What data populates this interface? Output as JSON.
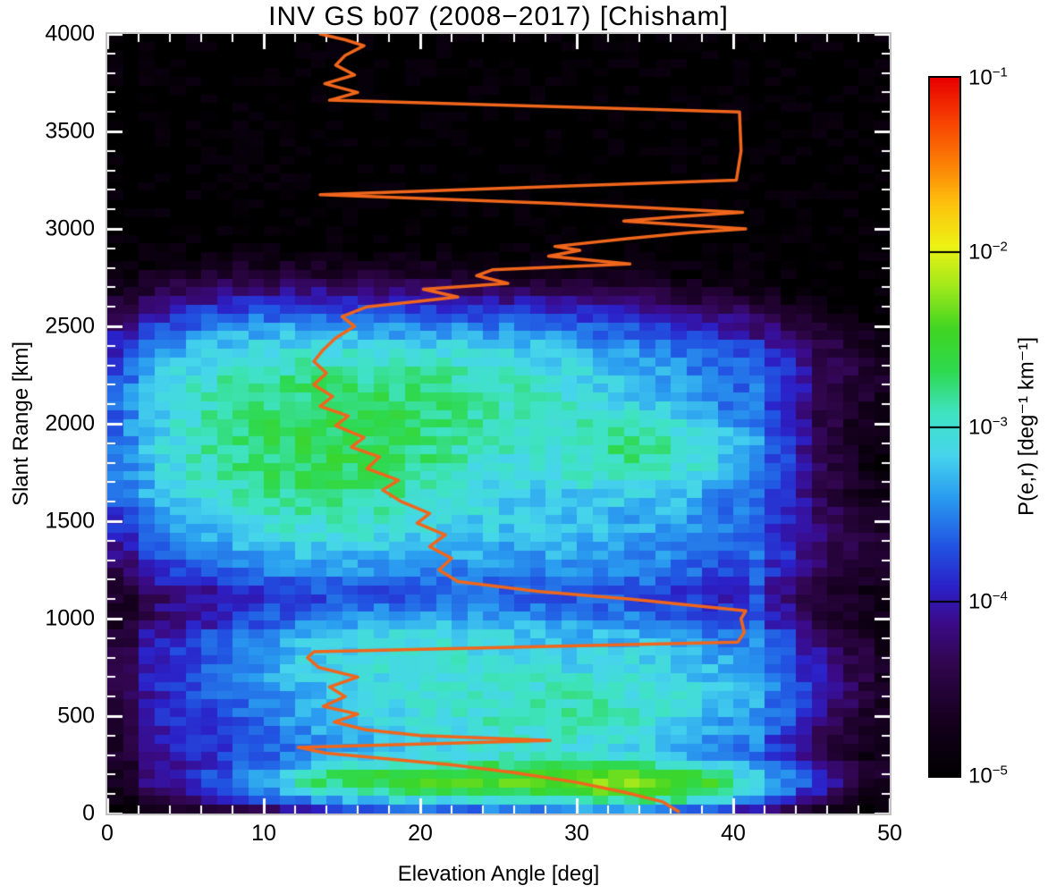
{
  "title": "INV GS b07 (2008−2017) [Chisham]",
  "x_axis": {
    "label": "Elevation Angle [deg]",
    "ticks": [
      0,
      10,
      20,
      30,
      40,
      50
    ],
    "minor_step": 2,
    "range": [
      0,
      50
    ]
  },
  "y_axis": {
    "label": "Slant Range [km]",
    "ticks": [
      0,
      500,
      1000,
      1500,
      2000,
      2500,
      3000,
      3500,
      4000
    ],
    "minor_step": 100,
    "range": [
      0,
      4000
    ]
  },
  "colorbar": {
    "label": "P(e,r) [deg⁻¹ km⁻¹]",
    "tick_exponents": [
      -1,
      -2,
      -3,
      -4,
      -5
    ],
    "scale": "log"
  },
  "chart_data": {
    "type": "heatmap",
    "title": "INV GS b07 (2008−2017) [Chisham]",
    "xlabel": "Elevation Angle [deg]",
    "ylabel": "Slant Range [km]",
    "zlabel": "P(e,r) [deg⁻¹ km⁻¹]",
    "xlim": [
      0,
      50
    ],
    "ylim": [
      0,
      4000
    ],
    "zscale": "log",
    "zlim": [
      1e-05,
      0.1
    ],
    "colormap_stops": [
      [
        0.0,
        "#000000"
      ],
      [
        0.08,
        "#16001f"
      ],
      [
        0.16,
        "#31064e"
      ],
      [
        0.22,
        "#3a0b8a"
      ],
      [
        0.27,
        "#2b21c8"
      ],
      [
        0.33,
        "#2155e2"
      ],
      [
        0.4,
        "#2a9df0"
      ],
      [
        0.46,
        "#46d5ec"
      ],
      [
        0.52,
        "#3fe3c2"
      ],
      [
        0.58,
        "#2ed94f"
      ],
      [
        0.64,
        "#3fd522"
      ],
      [
        0.7,
        "#9fe81b"
      ],
      [
        0.76,
        "#eef214"
      ],
      [
        0.82,
        "#fdc20e"
      ],
      [
        0.88,
        "#fb7d05"
      ],
      [
        0.94,
        "#f74002"
      ],
      [
        1.0,
        "#e80000"
      ]
    ],
    "heatmap_model": {
      "floor_log": -5,
      "noise_log": 0.16,
      "elev_bin_deg": 1,
      "range_bin_km": 45,
      "feather": {
        "e": 1.2,
        "r": 60
      },
      "regions": [
        {
          "e": [
            1.5,
            45
          ],
          "r": [
            110,
            980
          ],
          "v": -4.35
        },
        {
          "e": [
            1.5,
            45
          ],
          "r": [
            1130,
            2460
          ],
          "v": -4.35
        },
        {
          "e": [
            2,
            45
          ],
          "r": [
            980,
            1130
          ],
          "v": -4.55
        },
        {
          "e": [
            1.5,
            44
          ],
          "r": [
            2460,
            2610
          ],
          "v": -4.75
        },
        {
          "e": [
            40.3,
            42.2
          ],
          "r": [
            140,
            2450
          ],
          "v": -3.8
        },
        {
          "e": [
            12,
            40
          ],
          "r": [
            95,
            260
          ],
          "v": -3.15
        }
      ],
      "blobs": [
        {
          "e": 21,
          "r": 560,
          "se": 8,
          "sr": 230,
          "v": -3.2
        },
        {
          "e": 30,
          "r": 480,
          "se": 6,
          "sr": 180,
          "v": -3.15
        },
        {
          "e": 17,
          "r": 820,
          "se": 6,
          "sr": 130,
          "v": -3.4
        },
        {
          "e": 27,
          "r": 180,
          "se": 7,
          "sr": 70,
          "v": -2.8
        },
        {
          "e": 34,
          "r": 140,
          "se": 4,
          "sr": 55,
          "v": -2.5
        },
        {
          "e": 20,
          "r": 150,
          "se": 6,
          "sr": 60,
          "v": -2.95
        },
        {
          "e": 13,
          "r": 1850,
          "se": 6,
          "sr": 280,
          "v": -2.85
        },
        {
          "e": 20,
          "r": 2060,
          "se": 7,
          "sr": 220,
          "v": -3.0
        },
        {
          "e": 17,
          "r": 1620,
          "se": 8,
          "sr": 200,
          "v": -3.35
        },
        {
          "e": 34,
          "r": 1860,
          "se": 4,
          "sr": 140,
          "v": -2.9
        },
        {
          "e": 28,
          "r": 2250,
          "se": 8,
          "sr": 180,
          "v": -3.35
        },
        {
          "e": 10,
          "r": 2250,
          "se": 5,
          "sr": 180,
          "v": -3.3
        },
        {
          "e": 25,
          "r": 1350,
          "se": 10,
          "sr": 160,
          "v": -3.75
        },
        {
          "e": 33,
          "r": 1500,
          "se": 6,
          "sr": 220,
          "v": -3.6
        },
        {
          "e": 6,
          "r": 1950,
          "se": 3,
          "sr": 300,
          "v": -3.65
        },
        {
          "e": 36,
          "r": 700,
          "se": 5,
          "sr": 180,
          "v": -3.4
        },
        {
          "e": 25,
          "r": 920,
          "se": 8,
          "sr": 110,
          "v": -3.6
        }
      ]
    },
    "overlay_line": {
      "name": "mean-elevation-profile",
      "color": "#f0661c",
      "width": 3.5,
      "points": [
        [
          36.5,
          10
        ],
        [
          35.5,
          60
        ],
        [
          33,
          110
        ],
        [
          30,
          160
        ],
        [
          26,
          210
        ],
        [
          22,
          250
        ],
        [
          18,
          280
        ],
        [
          14,
          310
        ],
        [
          12.2,
          340
        ],
        [
          28.3,
          375
        ],
        [
          20,
          400
        ],
        [
          16.5,
          430
        ],
        [
          14.5,
          470
        ],
        [
          16,
          510
        ],
        [
          13.8,
          550
        ],
        [
          15.2,
          600
        ],
        [
          14.2,
          650
        ],
        [
          16,
          700
        ],
        [
          13.5,
          750
        ],
        [
          12.8,
          800
        ],
        [
          13.2,
          830
        ],
        [
          40.3,
          880
        ],
        [
          40.7,
          930
        ],
        [
          40.5,
          1000
        ],
        [
          40.8,
          1040
        ],
        [
          33.5,
          1100
        ],
        [
          27.5,
          1140
        ],
        [
          22.4,
          1190
        ],
        [
          21.2,
          1250
        ],
        [
          22,
          1310
        ],
        [
          20.6,
          1370
        ],
        [
          21.6,
          1430
        ],
        [
          19.8,
          1490
        ],
        [
          20.6,
          1540
        ],
        [
          18.8,
          1600
        ],
        [
          17.6,
          1660
        ],
        [
          18.6,
          1710
        ],
        [
          16.6,
          1770
        ],
        [
          17.4,
          1830
        ],
        [
          15.6,
          1880
        ],
        [
          16.4,
          1930
        ],
        [
          14.6,
          1990
        ],
        [
          15.4,
          2040
        ],
        [
          13.6,
          2090
        ],
        [
          14.4,
          2140
        ],
        [
          13.2,
          2200
        ],
        [
          14,
          2260
        ],
        [
          13.2,
          2320
        ],
        [
          13.8,
          2380
        ],
        [
          14.6,
          2440
        ],
        [
          15.8,
          2500
        ],
        [
          15,
          2550
        ],
        [
          16.6,
          2600
        ],
        [
          22.4,
          2650
        ],
        [
          20.2,
          2690
        ],
        [
          25.6,
          2720
        ],
        [
          23.6,
          2760
        ],
        [
          24.6,
          2790
        ],
        [
          33.4,
          2820
        ],
        [
          28.2,
          2860
        ],
        [
          30.2,
          2890
        ],
        [
          28.6,
          2910
        ],
        [
          33.2,
          2950
        ],
        [
          37.2,
          2980
        ],
        [
          40.8,
          3000
        ],
        [
          33,
          3040
        ],
        [
          36,
          3060
        ],
        [
          40.6,
          3085
        ],
        [
          29,
          3130
        ],
        [
          13.6,
          3175
        ],
        [
          40.2,
          3250
        ],
        [
          40.5,
          3400
        ],
        [
          40.4,
          3600
        ],
        [
          14.2,
          3660
        ],
        [
          16,
          3700
        ],
        [
          13.9,
          3745
        ],
        [
          15.8,
          3790
        ],
        [
          14.6,
          3840
        ],
        [
          15.2,
          3890
        ],
        [
          16.4,
          3940
        ],
        [
          15.2,
          3970
        ],
        [
          13.6,
          4000
        ]
      ]
    }
  }
}
